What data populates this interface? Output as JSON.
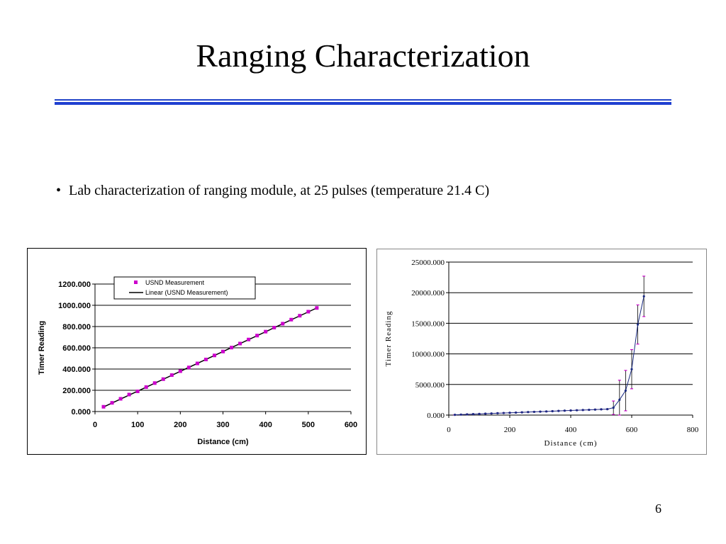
{
  "slide": {
    "title": "Ranging Characterization",
    "bullet": "Lab characterization of ranging module, at 25 pulses (temperature 21.4 C)",
    "page_number": "6"
  },
  "colors": {
    "rule": "#1f3fd0",
    "marker_magenta": "#cc00cc",
    "line_navy": "#1a2a80",
    "linear_black": "#000000"
  },
  "chart_data": [
    {
      "type": "scatter",
      "xlabel": "Distance (cm)",
      "ylabel": "Timer Reading",
      "xlim": [
        0,
        600
      ],
      "ylim": [
        0,
        1200
      ],
      "xticks": [
        "0",
        "100",
        "200",
        "300",
        "400",
        "500",
        "600"
      ],
      "yticks": [
        "0.000",
        "200.000",
        "400.000",
        "600.000",
        "800.000",
        "1000.000",
        "1200.000"
      ],
      "grid": true,
      "legend_position": "top",
      "series": [
        {
          "name": "USND Measurement",
          "x": [
            20,
            40,
            60,
            80,
            100,
            120,
            140,
            160,
            180,
            200,
            220,
            240,
            260,
            280,
            300,
            320,
            340,
            360,
            380,
            400,
            420,
            440,
            460,
            480,
            500,
            520
          ],
          "y": [
            45,
            82,
            120,
            160,
            190,
            230,
            268,
            305,
            343,
            380,
            415,
            453,
            490,
            528,
            565,
            602,
            640,
            678,
            715,
            752,
            790,
            827,
            865,
            902,
            940,
            975
          ]
        },
        {
          "name": "Linear (USND Measurement)",
          "x": [
            20,
            520
          ],
          "y": [
            43,
            975
          ]
        }
      ]
    },
    {
      "type": "line",
      "xlabel": "Distance (cm)",
      "ylabel": "Timer Reading",
      "xlim": [
        0,
        800
      ],
      "ylim": [
        0,
        25000
      ],
      "xticks": [
        "0",
        "200",
        "400",
        "600",
        "800"
      ],
      "yticks": [
        "0.000",
        "5000.000",
        "10000.000",
        "15000.000",
        "20000.000",
        "25000.000"
      ],
      "grid": true,
      "series": [
        {
          "x": [
            20,
            40,
            60,
            80,
            100,
            120,
            140,
            160,
            180,
            200,
            220,
            240,
            260,
            280,
            300,
            320,
            340,
            360,
            380,
            400,
            420,
            440,
            460,
            480,
            500,
            520,
            540,
            560,
            580,
            600,
            620,
            640
          ],
          "y": [
            40,
            80,
            120,
            160,
            190,
            230,
            270,
            310,
            340,
            380,
            410,
            450,
            490,
            530,
            560,
            600,
            640,
            680,
            720,
            750,
            790,
            830,
            860,
            900,
            940,
            970,
            1200,
            2500,
            4000,
            7500,
            14800,
            19400
          ],
          "error": [
            20,
            20,
            20,
            20,
            20,
            20,
            20,
            20,
            20,
            20,
            20,
            20,
            20,
            20,
            20,
            20,
            20,
            20,
            20,
            20,
            20,
            20,
            20,
            20,
            20,
            20,
            1100,
            3200,
            3300,
            3200,
            3200,
            3300
          ]
        }
      ]
    }
  ]
}
